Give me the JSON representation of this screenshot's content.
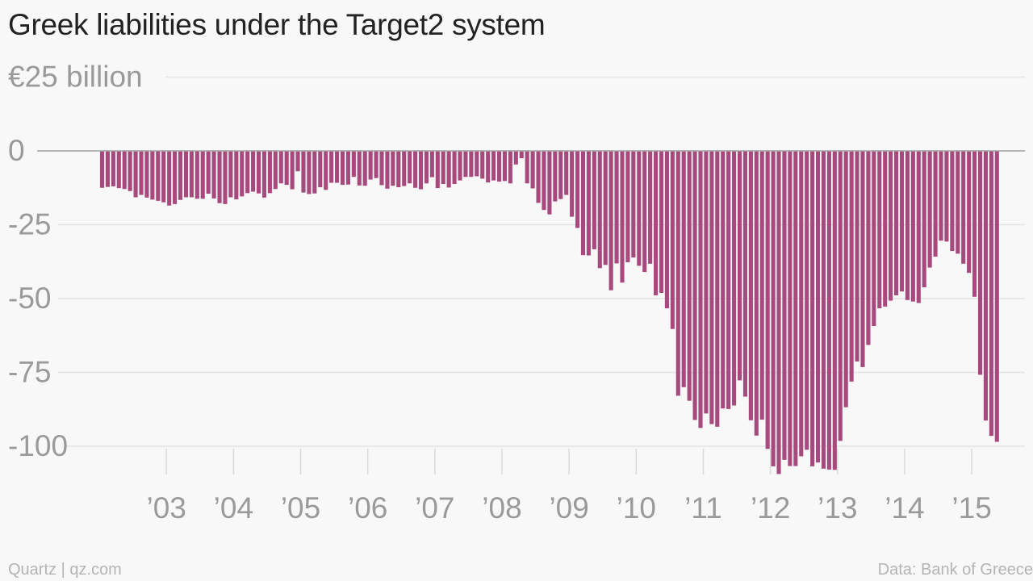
{
  "chart_data": {
    "type": "bar",
    "title": "Greek liabilities under the Target2 system",
    "ylabel": "",
    "xlabel": "",
    "y_ticks": [
      {
        "value": 25,
        "label": "€25 billion"
      },
      {
        "value": 0,
        "label": "0"
      },
      {
        "value": -25,
        "label": "-25"
      },
      {
        "value": -50,
        "label": "-50"
      },
      {
        "value": -75,
        "label": "-75"
      },
      {
        "value": -100,
        "label": "-100"
      }
    ],
    "ylim": [
      -110,
      25
    ],
    "x_ticks": [
      {
        "label": "’03",
        "month_index": 12
      },
      {
        "label": "’04",
        "month_index": 24
      },
      {
        "label": "’05",
        "month_index": 36
      },
      {
        "label": "’06",
        "month_index": 48
      },
      {
        "label": "’07",
        "month_index": 60
      },
      {
        "label": "’08",
        "month_index": 72
      },
      {
        "label": "’09",
        "month_index": 84
      },
      {
        "label": "’10",
        "month_index": 96
      },
      {
        "label": "’11",
        "month_index": 108
      },
      {
        "label": "’12",
        "month_index": 120
      },
      {
        "label": "’13",
        "month_index": 132
      },
      {
        "label": "’14",
        "month_index": 144
      },
      {
        "label": "’15",
        "month_index": 156
      }
    ],
    "series": [
      {
        "start": "2002-01",
        "frequency": "monthly",
        "color": "#a8497e",
        "values": [
          -12.5,
          -12.2,
          -12,
          -12.6,
          -12.9,
          -13.6,
          -15.7,
          -14.9,
          -15.8,
          -16.5,
          -16.9,
          -17.4,
          -18.5,
          -18,
          -16.6,
          -15.7,
          -15.7,
          -16.2,
          -16.2,
          -14.5,
          -16.1,
          -17.7,
          -18,
          -15.7,
          -16.4,
          -15.4,
          -14.3,
          -13.8,
          -14.4,
          -15.8,
          -14.3,
          -12.9,
          -11,
          -11.5,
          -13,
          -6.9,
          -14.1,
          -14.6,
          -14.4,
          -12.3,
          -13.2,
          -10.8,
          -10.8,
          -11.5,
          -11.4,
          -8.8,
          -11.7,
          -11.8,
          -9.7,
          -9.2,
          -11.6,
          -12.8,
          -11.8,
          -12.3,
          -11.9,
          -11,
          -12.5,
          -13,
          -11,
          -8.9,
          -12.6,
          -11.2,
          -12.4,
          -11.2,
          -10,
          -8.8,
          -8.8,
          -8.6,
          -9.4,
          -10.7,
          -10,
          -10.4,
          -10.2,
          -11,
          -4.6,
          -2.5,
          -11,
          -12.7,
          -17.6,
          -20,
          -21.5,
          -17.1,
          -16.3,
          -14.9,
          -22.3,
          -26.1,
          -35.3,
          -35.4,
          -33.3,
          -39.7,
          -38.6,
          -47.2,
          -38.1,
          -44.6,
          -37.7,
          -36.1,
          -38.9,
          -41,
          -38.2,
          -48.9,
          -48.1,
          -53.3,
          -60.3,
          -82.9,
          -80,
          -84.6,
          -91.1,
          -93.8,
          -88.9,
          -92.5,
          -93.4,
          -87.2,
          -87.4,
          -86.2,
          -77.7,
          -83.2,
          -91.2,
          -96.4,
          -91,
          -100.9,
          -106.8,
          -109.4,
          -104.6,
          -106.7,
          -106.7,
          -103.4,
          -101.2,
          -106.8,
          -105.5,
          -107.6,
          -107.9,
          -108,
          -98.2,
          -86.8,
          -78.1,
          -71.3,
          -73.2,
          -65.7,
          -59.3,
          -53.3,
          -52.7,
          -50.7,
          -48.9,
          -47.6,
          -50.5,
          -51,
          -51.5,
          -46.2,
          -39.5,
          -35.8,
          -30.4,
          -30.7,
          -33.9,
          -34.8,
          -38.2,
          -41.3,
          -49.4,
          -75.8,
          -91.3,
          -96.5,
          -98.5
        ]
      }
    ],
    "grid": true,
    "legend": "none"
  },
  "footer": {
    "left": "Quartz | qz.com",
    "right": "Data: Bank of Greece"
  }
}
